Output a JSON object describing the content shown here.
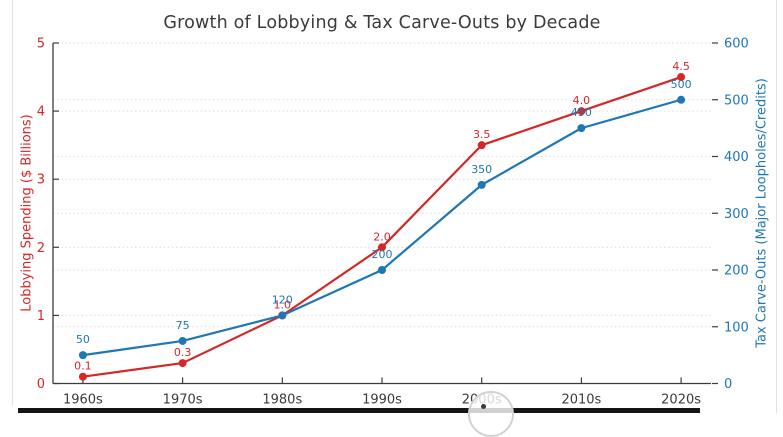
{
  "chart_data": {
    "type": "line",
    "title": "Growth of Lobbying & Tax Carve-Outs by Decade",
    "title_color": "#3b3b3b",
    "categories": [
      "1960s",
      "1970s",
      "1980s",
      "1990s",
      "2000s",
      "2010s",
      "2020s"
    ],
    "series": [
      {
        "name": "Lobbying Spending",
        "axis": "left",
        "color": "#d62728",
        "marker": "circle",
        "values": [
          0.1,
          0.3,
          1.0,
          2.0,
          3.5,
          4.0,
          4.5
        ],
        "point_labels": [
          "0.1",
          "0.3",
          "1.0",
          "2.0",
          "3.5",
          "4.0",
          "4.5"
        ]
      },
      {
        "name": "Tax Carve-Outs",
        "axis": "right",
        "color": "#1f77b4",
        "marker": "circle",
        "values": [
          50,
          75,
          120,
          200,
          350,
          450,
          500
        ],
        "point_labels": [
          "50",
          "75",
          "120",
          "200",
          "350",
          "450",
          "500"
        ]
      }
    ],
    "axes": {
      "x": {
        "ticks": [
          "1960s",
          "1970s",
          "1980s",
          "1990s",
          "2000s",
          "2010s",
          "2020s"
        ],
        "color": "#3b3b3b"
      },
      "left": {
        "label": "Lobbying Spending ($ Billions)",
        "color": "#d62728",
        "min": 0,
        "max": 5,
        "ticks": [
          0,
          1,
          2,
          3,
          4,
          5
        ]
      },
      "right": {
        "label": "Tax Carve-Outs (Major Loopholes/Credits)",
        "color": "#1f77b4",
        "min": 0,
        "max": 600,
        "ticks": [
          0,
          100,
          200,
          300,
          400,
          500,
          600
        ]
      }
    },
    "grid": {
      "show": true,
      "style": "dotted",
      "which": "both-y-axes"
    },
    "legend": {
      "show": false
    }
  }
}
